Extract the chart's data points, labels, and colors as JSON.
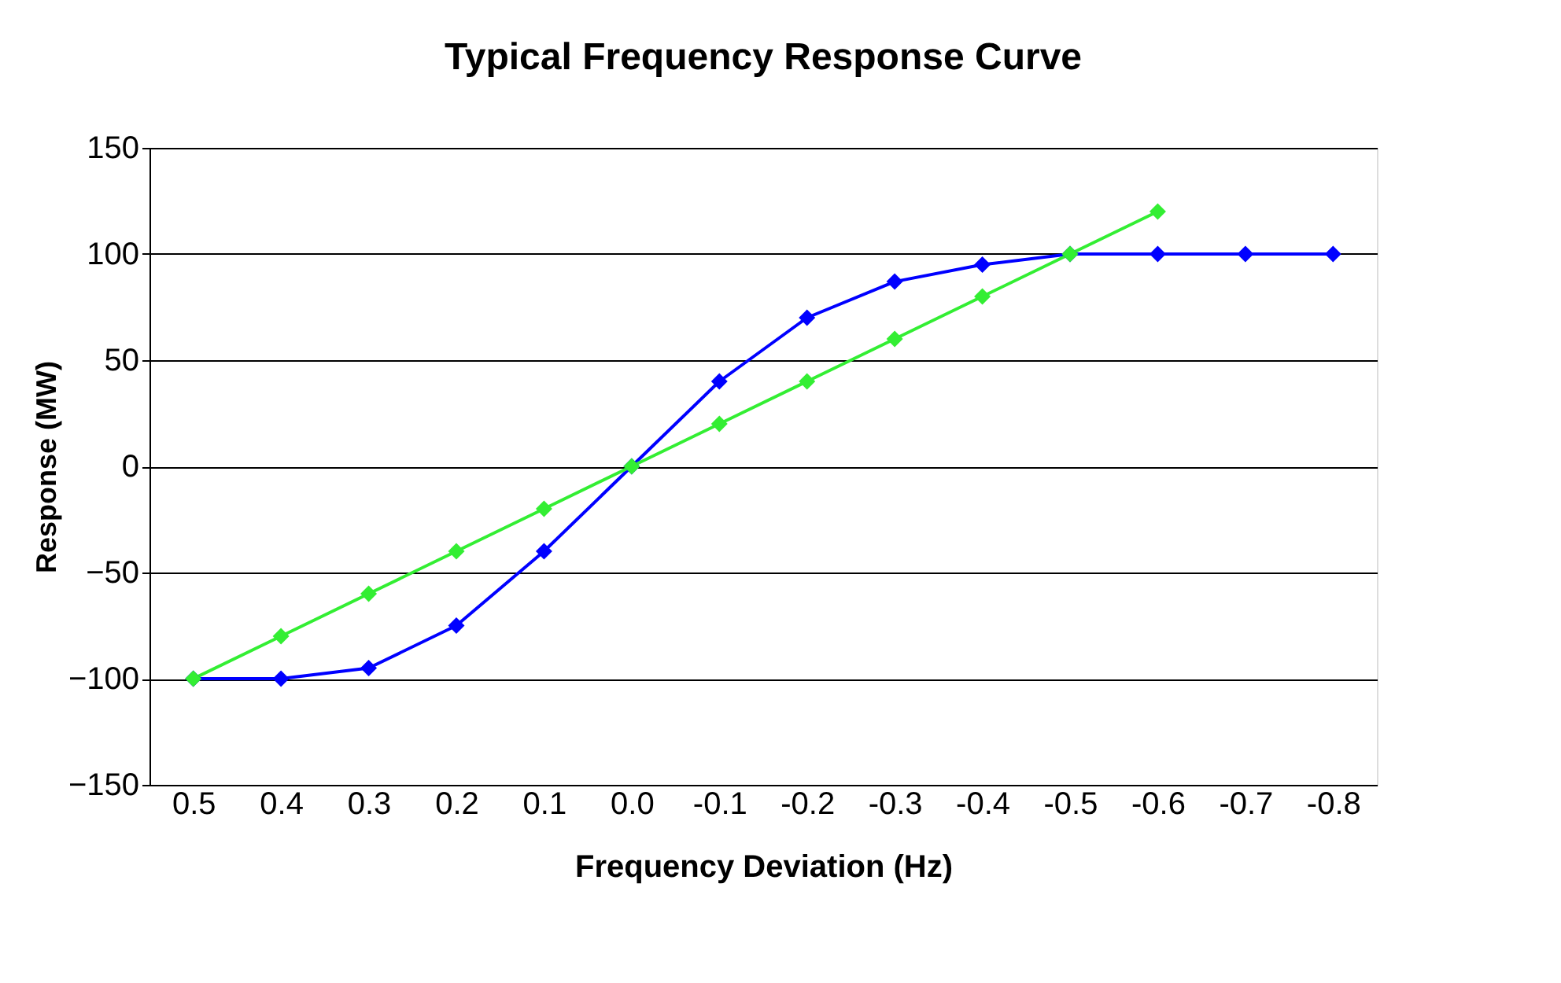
{
  "chart_data": {
    "type": "line",
    "title": "Typical Frequency Response Curve",
    "xlabel": "Frequency Deviation (Hz)",
    "ylabel": "Response (MW)",
    "categories": [
      "0.5",
      "0.4",
      "0.3",
      "0.2",
      "0.1",
      "0.0",
      "-0.1",
      "-0.2",
      "-0.3",
      "-0.4",
      "-0.5",
      "-0.6",
      "-0.7",
      "-0.8"
    ],
    "series": [
      {
        "color": "#0000ff",
        "values": [
          -100,
          -100,
          -95,
          -75,
          -40,
          0,
          40,
          70,
          87,
          95,
          100,
          100,
          100,
          100
        ]
      },
      {
        "color": "#33ee33",
        "values": [
          -100,
          -80,
          -60,
          -40,
          -20,
          0,
          20,
          40,
          60,
          80,
          100,
          120,
          null,
          null
        ]
      }
    ],
    "ylim": [
      -150,
      150
    ],
    "yticks": [
      -150,
      -100,
      -50,
      0,
      50,
      100,
      150
    ],
    "grid": "y",
    "legend": false,
    "marker": "diamond",
    "line_style": "solid"
  }
}
